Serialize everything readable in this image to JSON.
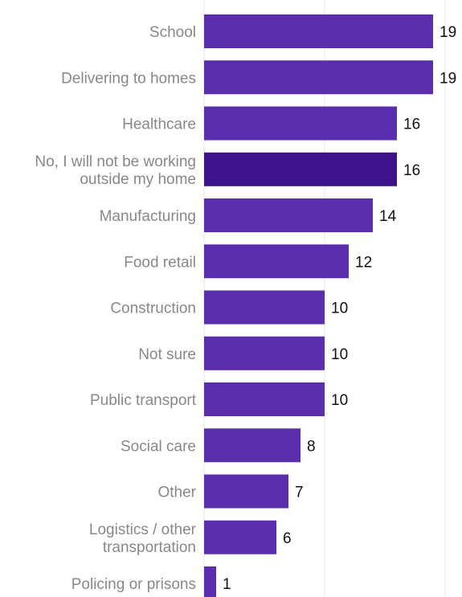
{
  "chart_data": {
    "type": "bar",
    "orientation": "horizontal",
    "categories": [
      "School",
      "Delivering to homes",
      "Healthcare",
      "No, I will not be working outside my home",
      "Manufacturing",
      "Food retail",
      "Construction",
      "Not sure",
      "Public transport",
      "Social care",
      "Other",
      "Logistics / other transportation",
      "Policing or prisons"
    ],
    "category_lines": [
      [
        "School"
      ],
      [
        "Delivering to homes"
      ],
      [
        "Healthcare"
      ],
      [
        "No, I will not be working",
        "outside my home"
      ],
      [
        "Manufacturing"
      ],
      [
        "Food retail"
      ],
      [
        "Construction"
      ],
      [
        "Not sure"
      ],
      [
        "Public transport"
      ],
      [
        "Social care"
      ],
      [
        "Other"
      ],
      [
        "Logistics / other",
        "transportation"
      ],
      [
        "Policing or prisons"
      ]
    ],
    "values": [
      19,
      19,
      16,
      16,
      14,
      12,
      10,
      10,
      10,
      8,
      7,
      6,
      1
    ],
    "title": "",
    "xlabel": "",
    "ylabel": "",
    "xlim": [
      0,
      19
    ],
    "grid": true,
    "legend": "none",
    "colors": {
      "bar": "#5a2eac",
      "highlight_bar": "#3d138c",
      "category_text": "#888888",
      "value_text": "#111111",
      "grid": "#e6e6e6"
    },
    "highlight_index": 3
  }
}
